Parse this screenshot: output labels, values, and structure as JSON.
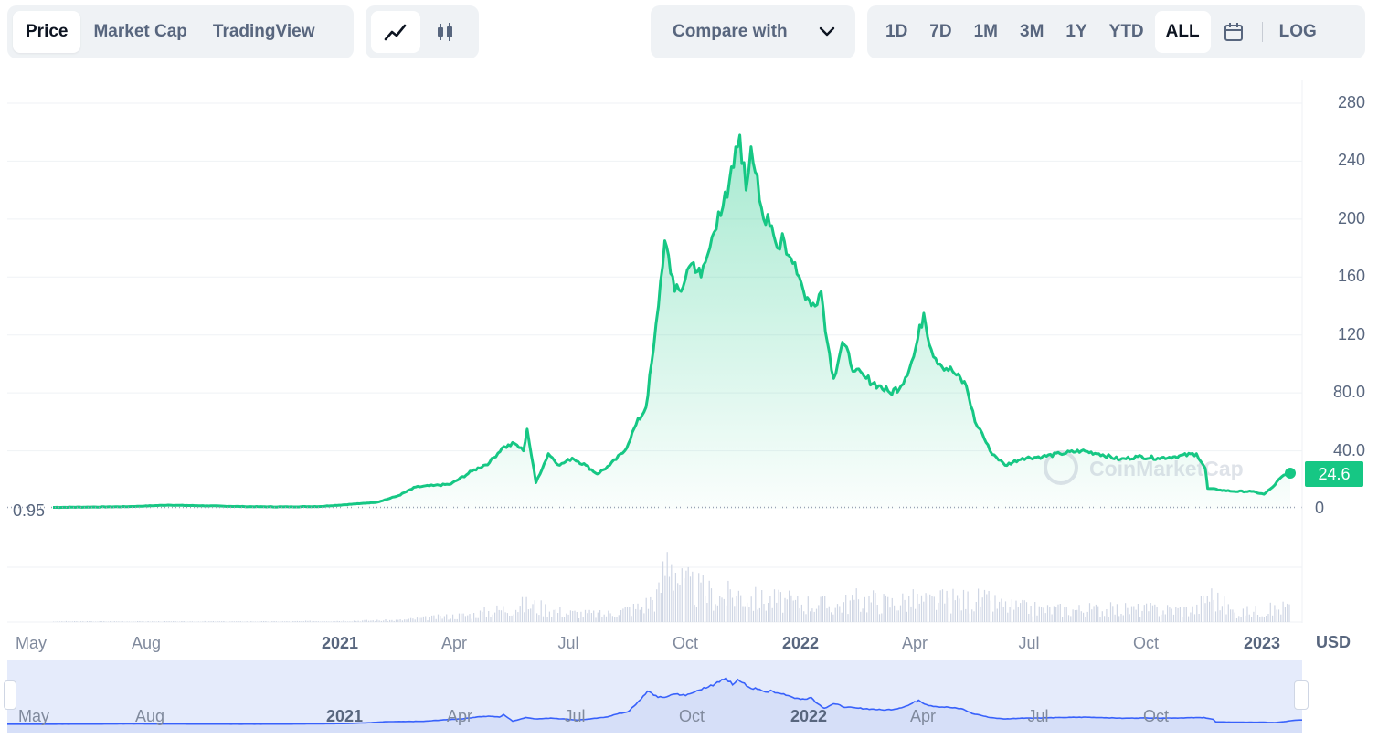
{
  "toolbar": {
    "view_tabs": [
      "Price",
      "Market Cap",
      "TradingView"
    ],
    "active_view": "Price",
    "chart_styles": [
      "line-chart-icon",
      "candlestick-icon"
    ],
    "compare_label": "Compare with",
    "ranges": [
      "1D",
      "7D",
      "1M",
      "3M",
      "1Y",
      "YTD",
      "ALL"
    ],
    "active_range": "ALL",
    "log_label": "LOG"
  },
  "currency": "USD",
  "current_price_label": "24.6",
  "start_price_label": "0.95",
  "watermark": "CoinMarketCap",
  "navigator_labels": [
    "May",
    "Aug",
    "2021",
    "Apr",
    "Jul",
    "Oct",
    "2022",
    "Apr",
    "Jul",
    "Oct"
  ],
  "colors": {
    "line": "#16c784",
    "early_line": "#ea3943",
    "volume": "#cfd6e4",
    "navigator_fill": "#e5ebfb",
    "navigator_line": "#3861fb"
  },
  "chart_data": {
    "type": "line",
    "x_tick_labels": [
      "May",
      "Aug",
      "2021",
      "Apr",
      "Jul",
      "Oct",
      "2022",
      "Apr",
      "Jul",
      "Oct",
      "2023"
    ],
    "y_tick_labels": [
      "0",
      "40.0",
      "80.0",
      "120",
      "160",
      "200",
      "240",
      "280"
    ],
    "ylim": [
      0,
      280
    ],
    "series": [
      {
        "x": [
          "2020-05-01",
          "2020-06-01",
          "2020-07-01",
          "2020-08-01",
          "2020-09-01",
          "2020-10-01",
          "2020-11-01",
          "2020-12-01",
          "2021-01-01",
          "2021-01-15",
          "2021-02-01",
          "2021-02-15",
          "2021-03-01",
          "2021-03-15",
          "2021-04-01",
          "2021-04-15",
          "2021-04-25",
          "2021-05-05",
          "2021-05-12",
          "2021-05-15",
          "2021-05-22",
          "2021-06-01",
          "2021-06-10",
          "2021-06-20",
          "2021-07-01",
          "2021-07-10",
          "2021-07-20",
          "2021-08-01",
          "2021-08-10",
          "2021-08-18",
          "2021-08-24",
          "2021-08-28",
          "2021-09-02",
          "2021-09-05",
          "2021-09-10",
          "2021-09-15",
          "2021-09-20",
          "2021-09-25",
          "2021-10-01",
          "2021-10-08",
          "2021-10-15",
          "2021-10-22",
          "2021-11-01",
          "2021-11-06",
          "2021-11-10",
          "2021-11-15",
          "2021-11-20",
          "2021-11-25",
          "2021-12-01",
          "2021-12-05",
          "2021-12-10",
          "2021-12-15",
          "2021-12-22",
          "2021-12-28",
          "2022-01-05",
          "2022-01-10",
          "2022-01-15",
          "2022-01-22",
          "2022-02-01",
          "2022-02-10",
          "2022-02-20",
          "2022-03-01",
          "2022-03-10",
          "2022-03-20",
          "2022-03-28",
          "2022-04-03",
          "2022-04-10",
          "2022-04-20",
          "2022-05-01",
          "2022-05-08",
          "2022-05-12",
          "2022-05-20",
          "2022-06-01",
          "2022-06-15",
          "2022-07-01",
          "2022-07-15",
          "2022-08-01",
          "2022-08-15",
          "2022-09-01",
          "2022-09-15",
          "2022-10-01",
          "2022-10-15",
          "2022-11-01",
          "2022-11-08",
          "2022-11-10",
          "2022-11-20",
          "2022-12-01",
          "2022-12-15",
          "2022-12-25",
          "2023-01-01",
          "2023-01-08",
          "2023-01-15"
        ],
        "y": [
          0.95,
          1.2,
          1.5,
          2.5,
          2.0,
          1.5,
          1.3,
          1.6,
          3.5,
          4.5,
          9,
          15,
          16,
          17,
          26,
          32,
          42,
          45,
          40,
          55,
          18,
          38,
          30,
          35,
          30,
          24,
          30,
          40,
          58,
          70,
          110,
          140,
          185,
          175,
          150,
          150,
          165,
          170,
          160,
          180,
          205,
          215,
          258,
          220,
          250,
          230,
          200,
          195,
          180,
          190,
          175,
          170,
          150,
          140,
          150,
          115,
          90,
          115,
          95,
          90,
          85,
          80,
          85,
          105,
          135,
          110,
          100,
          95,
          85,
          60,
          55,
          40,
          30,
          35,
          36,
          38,
          40,
          38,
          34,
          36,
          35,
          36,
          38,
          28,
          14,
          13,
          12,
          12,
          10,
          15,
          22,
          24.6
        ]
      }
    ],
    "volume": {
      "x": [
        "2020-05-01",
        "2020-08-01",
        "2020-11-01",
        "2021-02-01",
        "2021-04-01",
        "2021-05-15",
        "2021-06-15",
        "2021-07-15",
        "2021-08-15",
        "2021-08-28",
        "2021-09-05",
        "2021-09-15",
        "2021-10-01",
        "2021-10-15",
        "2021-11-01",
        "2021-11-15",
        "2021-12-01",
        "2021-12-15",
        "2022-01-01",
        "2022-01-15",
        "2022-02-01",
        "2022-02-15",
        "2022-03-01",
        "2022-03-15",
        "2022-04-01",
        "2022-04-15",
        "2022-05-01",
        "2022-05-12",
        "2022-06-01",
        "2022-07-01",
        "2022-08-01",
        "2022-09-01",
        "2022-10-01",
        "2022-11-01",
        "2022-11-10",
        "2022-12-01",
        "2023-01-01",
        "2023-01-15"
      ],
      "y": [
        0.1,
        0.1,
        0.1,
        0.3,
        1.2,
        2.8,
        1.5,
        1.2,
        2.5,
        4.5,
        12,
        6,
        5,
        4,
        4.5,
        3.5,
        3.5,
        3,
        3,
        2.5,
        3.5,
        3.5,
        3,
        3.5,
        3.2,
        3.5,
        3.5,
        3.5,
        2.5,
        2,
        2,
        2,
        2,
        2,
        4.5,
        1.5,
        2,
        2.5
      ]
    }
  }
}
